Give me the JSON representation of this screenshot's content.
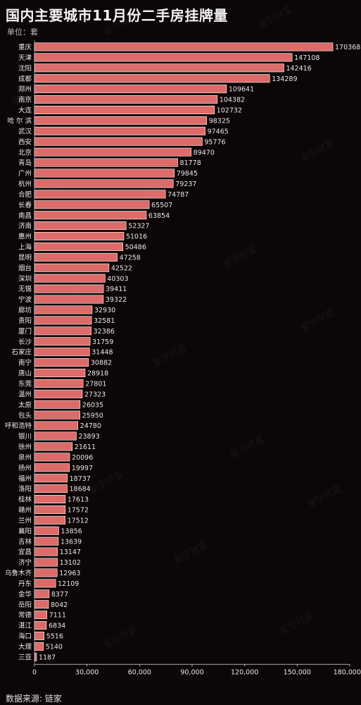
{
  "header": {
    "title": "国内主要城市11月份二手房挂牌量",
    "unit": "单位：套"
  },
  "footer": {
    "source": "数据来源: 链家"
  },
  "watermark": "星空财富",
  "colors": {
    "bar": "#dc6b69",
    "bar_stroke": "#ffffff",
    "background": "#0c0606",
    "text": "#e8e8e8"
  },
  "chart_data": {
    "type": "bar",
    "orientation": "horizontal",
    "title": "国内主要城市11月份二手房挂牌量",
    "subtitle": "单位：套",
    "xlabel": "",
    "ylabel": "",
    "xlim": [
      0,
      180000
    ],
    "xticks": [
      0,
      30000,
      60000,
      90000,
      120000,
      150000,
      180000
    ],
    "xtick_labels": [
      "0",
      "30,000",
      "60,000",
      "90,000",
      "120,000",
      "150,000",
      "180,000"
    ],
    "grid": false,
    "categories": [
      "重庆",
      "天津",
      "沈阳",
      "成都",
      "郑州",
      "南京",
      "大连",
      "哈 尔 滨",
      "武汉",
      "西安",
      "北京",
      "青岛",
      "广州",
      "杭州",
      "合肥",
      "长春",
      "南昌",
      "济南",
      "惠州",
      "上海",
      "昆明",
      "烟台",
      "深圳",
      "无锡",
      "宁波",
      "廊坊",
      "贵阳",
      "厦门",
      "长沙",
      "石家庄",
      "南宁",
      "唐山",
      "东莞",
      "温州",
      "太原",
      "包头",
      "呼和浩特",
      "银川",
      "徐州",
      "泉州",
      "扬州",
      "福州",
      "洛阳",
      "桂林",
      "赣州",
      "兰州",
      "襄阳",
      "吉林",
      "宜昌",
      "济宁",
      "乌鲁木齐",
      "丹东",
      "金华",
      "岳阳",
      "常德",
      "湛江",
      "海口",
      "大理",
      "三亚"
    ],
    "values": [
      170368,
      147108,
      142416,
      134289,
      109641,
      104382,
      102732,
      98325,
      97465,
      95776,
      89470,
      81778,
      79845,
      79237,
      74787,
      65507,
      63854,
      52327,
      51016,
      50486,
      47258,
      42522,
      40303,
      39411,
      39322,
      32930,
      32581,
      32386,
      31759,
      31448,
      30882,
      28918,
      27801,
      27323,
      26035,
      25950,
      24780,
      23893,
      21611,
      20096,
      19997,
      18737,
      18684,
      17613,
      17572,
      17512,
      13856,
      13639,
      13147,
      13102,
      12963,
      12109,
      8377,
      8042,
      7111,
      6834,
      5516,
      5140,
      1187
    ]
  }
}
